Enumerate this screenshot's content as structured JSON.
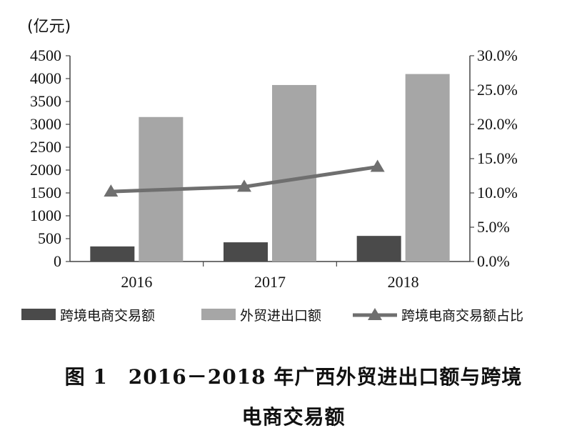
{
  "caption": {
    "line1": "图 1　2016－2018 年广西外贸进出口额与跨境",
    "line2": "电商交易额"
  },
  "chart_data": {
    "type": "bar",
    "unit_label": "(亿元)",
    "categories": [
      "2016",
      "2017",
      "2018"
    ],
    "series": [
      {
        "name": "跨境电商交易额",
        "kind": "bar",
        "axis": "left",
        "color": "#4a4a4a",
        "values": [
          330,
          420,
          560
        ]
      },
      {
        "name": "外贸进出口额",
        "kind": "bar",
        "axis": "left",
        "color": "#a6a6a6",
        "values": [
          3160,
          3860,
          4100
        ]
      },
      {
        "name": "跨境电商交易额占比",
        "kind": "line",
        "marker": "triangle",
        "axis": "right",
        "color": "#6f6f6f",
        "values": [
          10.2,
          10.9,
          13.8
        ]
      }
    ],
    "y_left": {
      "min": 0,
      "max": 4500,
      "ticks": [
        0,
        500,
        1000,
        1500,
        2000,
        2500,
        3000,
        3500,
        4000,
        4500
      ],
      "tick_labels": [
        "0",
        "500",
        "1000",
        "1500",
        "2000",
        "2500",
        "3000",
        "3500",
        "4000",
        "4500"
      ]
    },
    "y_right": {
      "min": 0,
      "max": 30,
      "ticks": [
        0,
        5,
        10,
        15,
        20,
        25,
        30
      ],
      "tick_labels": [
        "0.0%",
        "5.0%",
        "10.0%",
        "15.0%",
        "20.0%",
        "25.0%",
        "30.0%"
      ]
    },
    "grid": false,
    "legend_position": "bottom"
  }
}
